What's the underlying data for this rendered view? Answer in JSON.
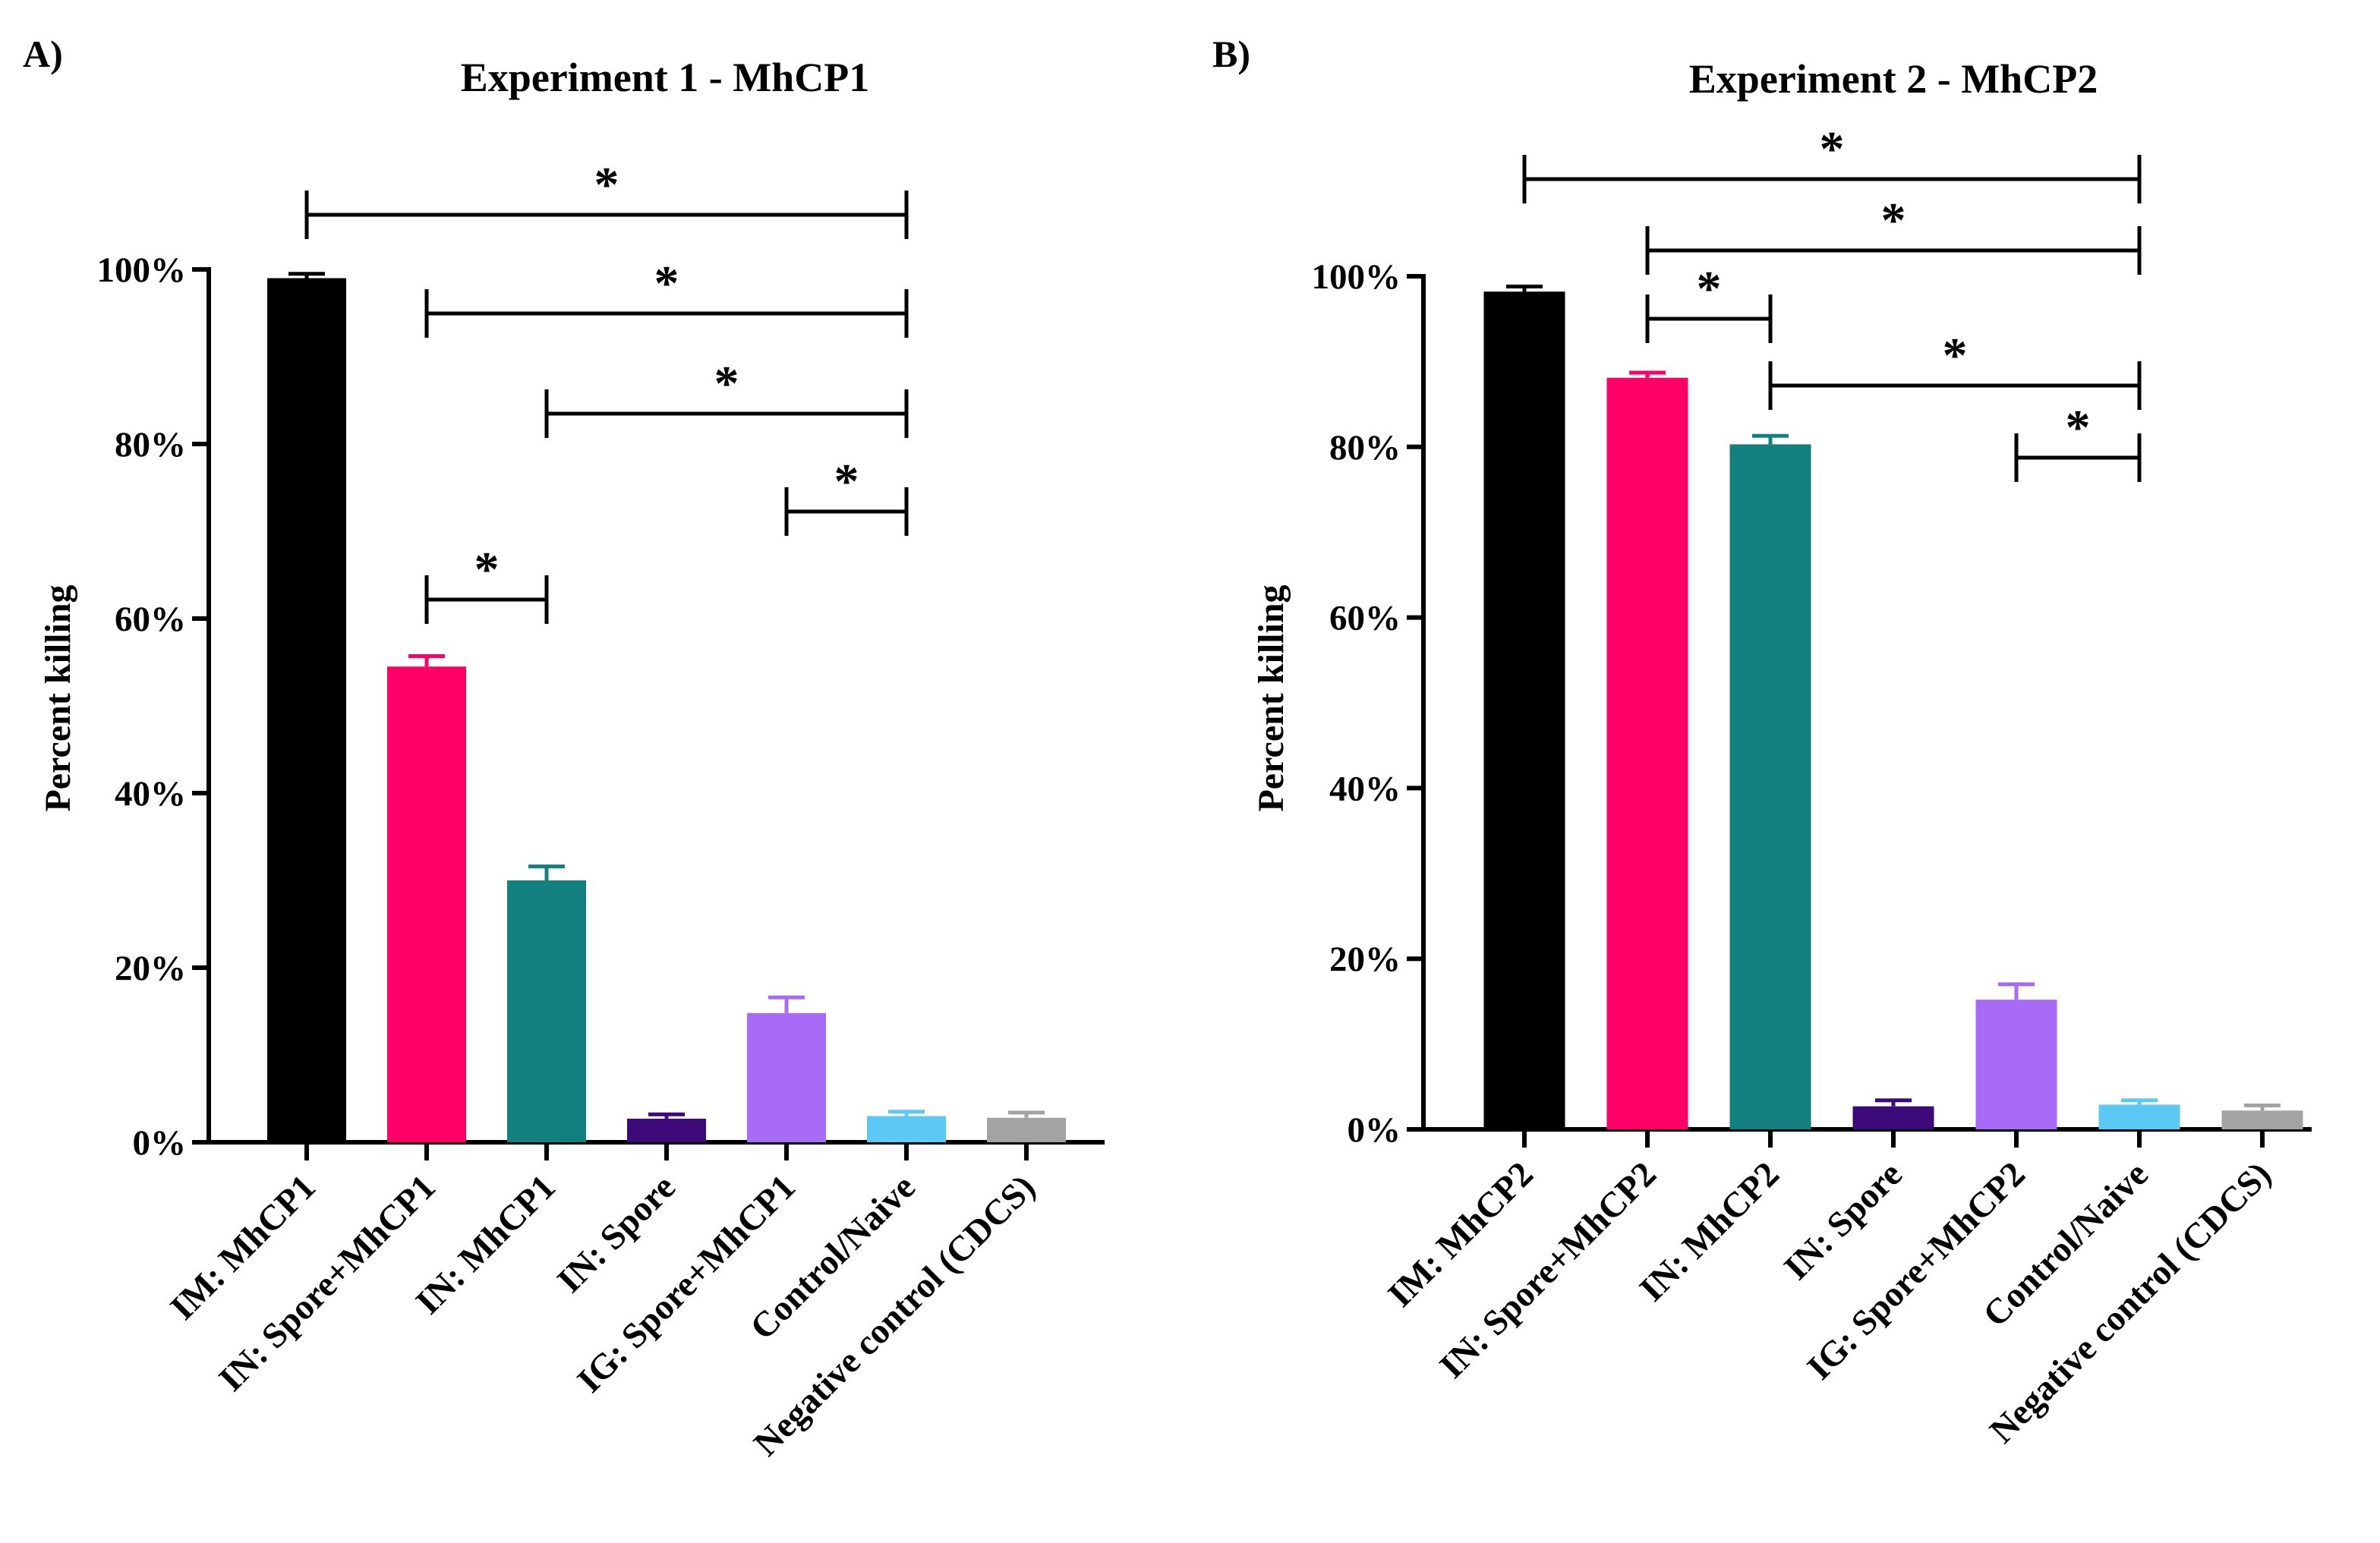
{
  "chart_data": [
    {
      "panel": "A)",
      "type": "bar",
      "title": "Experiment 1 - MhCP1",
      "xlabel": "",
      "ylabel": "Percent killing",
      "ylim": [
        0,
        100
      ],
      "yticks": [
        "0%",
        "20%",
        "40%",
        "60%",
        "80%",
        "100%"
      ],
      "categories": [
        "IM: MhCP1",
        "IN: Spore+MhCP1",
        "IN: MhCP1",
        "IN: Spore",
        "IG: Spore+MhCP1",
        "Control/Naive",
        "Negative control (CDCS)"
      ],
      "values": [
        99,
        54.5,
        30,
        2.7,
        14.8,
        3,
        2.8
      ],
      "errors": [
        0.5,
        1.2,
        1.6,
        0.5,
        1.8,
        0.5,
        0.6
      ],
      "colors": [
        "#000000",
        "#ff0066",
        "#138080",
        "#3d0a7a",
        "#a86bf7",
        "#5bc8f5",
        "#a3a3a3"
      ],
      "significance": [
        {
          "from": 0,
          "to": 5,
          "label": "*"
        },
        {
          "from": 1,
          "to": 5,
          "label": "*"
        },
        {
          "from": 2,
          "to": 5,
          "label": "*"
        },
        {
          "from": 4,
          "to": 5,
          "label": "*"
        },
        {
          "from": 1,
          "to": 2,
          "label": "*"
        }
      ]
    },
    {
      "panel": "B)",
      "type": "bar",
      "title": "Experiment 2 - MhCP2",
      "xlabel": "",
      "ylabel": "Percent killing",
      "ylim": [
        0,
        100
      ],
      "yticks": [
        "0%",
        "20%",
        "40%",
        "60%",
        "80%",
        "100%"
      ],
      "categories": [
        "IM: MhCP2",
        "IN: Spore+MhCP2",
        "IN: MhCP2",
        "IN: Spore",
        "IG: Spore+MhCP2",
        "Control/Naive",
        "Negative control (CDCS)"
      ],
      "values": [
        98.2,
        88.1,
        80.3,
        2.7,
        15.2,
        2.9,
        2.2
      ],
      "errors": [
        0.6,
        0.6,
        1.0,
        0.7,
        1.8,
        0.5,
        0.6
      ],
      "colors": [
        "#000000",
        "#ff0066",
        "#138080",
        "#3d0a7a",
        "#a86bf7",
        "#5bc8f5",
        "#a3a3a3"
      ],
      "significance": [
        {
          "from": 0,
          "to": 5,
          "label": "*"
        },
        {
          "from": 1,
          "to": 5,
          "label": "*"
        },
        {
          "from": 1,
          "to": 2,
          "label": "*"
        },
        {
          "from": 2,
          "to": 5,
          "label": "*"
        },
        {
          "from": 4,
          "to": 5,
          "label": "*"
        }
      ]
    }
  ]
}
